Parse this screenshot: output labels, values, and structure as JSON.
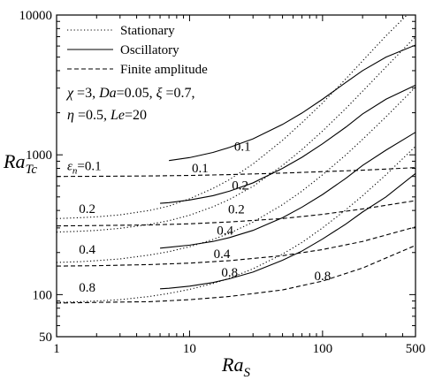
{
  "chart_data": {
    "type": "line",
    "x_scale": "log",
    "y_scale": "log",
    "xlim": [
      1,
      500
    ],
    "ylim": [
      50,
      10000
    ],
    "x_ticks": [
      {
        "value": 1,
        "label": "1"
      },
      {
        "value": 10,
        "label": "10"
      },
      {
        "value": 100,
        "label": "100"
      },
      {
        "value": 500,
        "label": "500"
      }
    ],
    "y_ticks": [
      {
        "value": 50,
        "label": "50"
      },
      {
        "value": 100,
        "label": "100"
      },
      {
        "value": 1000,
        "label": "1000"
      },
      {
        "value": 10000,
        "label": "10000"
      }
    ],
    "xlabel": {
      "main": "Ra",
      "sub": "S"
    },
    "ylabel": {
      "main": "Ra",
      "sub": "Tc"
    },
    "legend": {
      "placement": "top-left",
      "entries": [
        {
          "style": "dotted",
          "label": "Stationary"
        },
        {
          "style": "solid",
          "label": "Oscillatory"
        },
        {
          "style": "dashed",
          "label": "Finite amplitude"
        }
      ]
    },
    "parameters": {
      "line1": [
        {
          "sym": "χ",
          "italic": true
        },
        {
          "text": " =3, "
        },
        {
          "text": "Da",
          "italic": true
        },
        {
          "text": "=0.05, "
        },
        {
          "sym": "ξ",
          "italic": true
        },
        {
          "text": " =0.7,"
        }
      ],
      "line2": [
        {
          "sym": "η",
          "italic": true
        },
        {
          "text": " =0.5, "
        },
        {
          "text": "Le",
          "italic": true
        },
        {
          "text": "=20"
        }
      ]
    },
    "epsilon_label": {
      "sym": "ε",
      "sub": "n",
      "text": "=0.1"
    },
    "series": [
      {
        "style": "dotted",
        "eps": "0.1",
        "x": [
          1,
          1.5,
          2,
          3,
          5,
          7,
          10,
          15,
          20,
          30,
          50,
          70,
          100,
          150,
          200,
          300,
          500
        ],
        "y": [
          350,
          355,
          360,
          372,
          400,
          430,
          485,
          575,
          665,
          860,
          1270,
          1700,
          2350,
          3500,
          4700,
          7100,
          11500
        ]
      },
      {
        "style": "dotted",
        "eps": "0.2",
        "x": [
          1,
          1.5,
          2,
          3,
          5,
          7,
          10,
          15,
          20,
          30,
          50,
          70,
          100,
          150,
          200,
          300,
          500
        ],
        "y": [
          280,
          284,
          288,
          298,
          318,
          338,
          370,
          425,
          480,
          595,
          840,
          1090,
          1480,
          2150,
          2850,
          4250,
          7000
        ]
      },
      {
        "style": "dotted",
        "eps": "0.4",
        "x": [
          1,
          1.5,
          2,
          3,
          5,
          7,
          10,
          15,
          20,
          30,
          50,
          70,
          100,
          150,
          200,
          300,
          500
        ],
        "y": [
          170,
          172,
          175,
          180,
          192,
          203,
          220,
          248,
          275,
          330,
          440,
          550,
          720,
          1000,
          1290,
          1870,
          3050
        ]
      },
      {
        "style": "dotted",
        "eps": "0.8",
        "x": [
          1,
          1.5,
          2,
          3,
          5,
          7,
          10,
          15,
          20,
          30,
          50,
          70,
          100,
          150,
          200,
          300,
          500
        ],
        "y": [
          88,
          89,
          90,
          92,
          97,
          102,
          109,
          120,
          131,
          153,
          195,
          236,
          300,
          405,
          510,
          720,
          1150
        ]
      },
      {
        "style": "solid",
        "eps": "0.1",
        "x": [
          7,
          10,
          15,
          20,
          30,
          50,
          70,
          100,
          150,
          200,
          300,
          500
        ],
        "y": [
          910,
          955,
          1040,
          1130,
          1300,
          1650,
          1990,
          2500,
          3300,
          4000,
          5000,
          6100
        ]
      },
      {
        "style": "solid",
        "eps": "0.2",
        "x": [
          6,
          7,
          10,
          15,
          20,
          30,
          50,
          70,
          100,
          150,
          200,
          300,
          500
        ],
        "y": [
          450,
          455,
          475,
          510,
          550,
          630,
          800,
          960,
          1200,
          1580,
          1960,
          2500,
          3150
        ]
      },
      {
        "style": "solid",
        "eps": "0.4",
        "x": [
          6,
          7,
          10,
          15,
          20,
          30,
          50,
          70,
          100,
          150,
          200,
          300,
          500
        ],
        "y": [
          215,
          218,
          226,
          240,
          256,
          288,
          355,
          422,
          520,
          680,
          840,
          1080,
          1450
        ]
      },
      {
        "style": "solid",
        "eps": "0.8",
        "x": [
          6,
          7,
          10,
          15,
          20,
          30,
          50,
          70,
          100,
          150,
          200,
          300,
          500
        ],
        "y": [
          110,
          111,
          115,
          122,
          130,
          145,
          176,
          205,
          250,
          320,
          390,
          500,
          735
        ]
      },
      {
        "style": "dashed",
        "eps": "0.1",
        "x": [
          1,
          2,
          5,
          10,
          20,
          50,
          100,
          200,
          500
        ],
        "y": [
          700,
          702,
          706,
          712,
          722,
          740,
          758,
          776,
          810
        ]
      },
      {
        "style": "dashed",
        "eps": "0.2",
        "x": [
          1,
          2,
          5,
          10,
          20,
          50,
          100,
          200,
          500
        ],
        "y": [
          310,
          312,
          315,
          321,
          331,
          350,
          375,
          410,
          470
        ]
      },
      {
        "style": "dashed",
        "eps": "0.4",
        "x": [
          1,
          2,
          5,
          10,
          20,
          50,
          100,
          200,
          500
        ],
        "y": [
          160,
          161,
          164,
          168,
          175,
          190,
          210,
          240,
          305
        ]
      },
      {
        "style": "dashed",
        "eps": "0.8",
        "x": [
          1,
          2,
          5,
          10,
          20,
          50,
          100,
          200,
          500
        ],
        "y": [
          87,
          88,
          89,
          92,
          97,
          108,
          125,
          155,
          225
        ]
      }
    ],
    "curve_labels": [
      {
        "text": "0.1",
        "x": 25,
        "y": 1070
      },
      {
        "text": "0.1",
        "x": 12,
        "y": 750
      },
      {
        "text": "0.2",
        "x": 24,
        "y": 565
      },
      {
        "text": "0.2",
        "x": 1.7,
        "y": 385
      },
      {
        "text": "0.2",
        "x": 22.5,
        "y": 380
      },
      {
        "text": "0.4",
        "x": 18.5,
        "y": 268
      },
      {
        "text": "0.4",
        "x": 1.7,
        "y": 197
      },
      {
        "text": "0.4",
        "x": 17.5,
        "y": 182
      },
      {
        "text": "0.8",
        "x": 20,
        "y": 135
      },
      {
        "text": "0.8",
        "x": 1.7,
        "y": 105
      },
      {
        "text": "0.8",
        "x": 100,
        "y": 127
      }
    ]
  }
}
